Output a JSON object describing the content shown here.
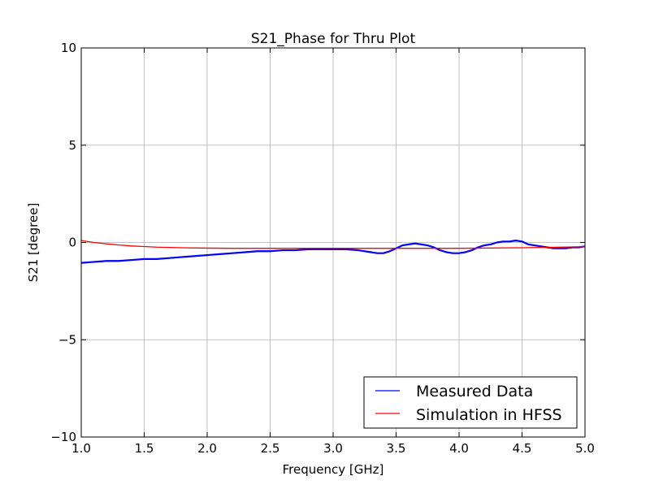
{
  "chart_data": {
    "type": "line",
    "title": "S21_Phase for Thru Plot",
    "xlabel": "Frequency [GHz]",
    "ylabel": "S21 [degree]",
    "xlim": [
      1.0,
      5.0
    ],
    "ylim": [
      -10,
      10
    ],
    "x_ticks": [
      1.0,
      1.5,
      2.0,
      2.5,
      3.0,
      3.5,
      4.0,
      4.5,
      5.0
    ],
    "x_tick_labels": [
      "1.0",
      "1.5",
      "2.0",
      "2.5",
      "3.0",
      "3.5",
      "4.0",
      "4.5",
      "5.0"
    ],
    "y_ticks": [
      10,
      5,
      0,
      -5,
      -10
    ],
    "y_tick_labels": [
      "10",
      "5",
      "0",
      "−5",
      "−10"
    ],
    "grid": true,
    "legend_position": "lower right",
    "series": [
      {
        "name": "Measured Data",
        "color": "#0000ff",
        "x": [
          1.0,
          1.1,
          1.2,
          1.3,
          1.4,
          1.5,
          1.6,
          1.7,
          1.8,
          1.9,
          2.0,
          2.1,
          2.2,
          2.3,
          2.4,
          2.5,
          2.6,
          2.7,
          2.8,
          2.9,
          3.0,
          3.1,
          3.2,
          3.3,
          3.35,
          3.4,
          3.45,
          3.5,
          3.55,
          3.6,
          3.65,
          3.7,
          3.75,
          3.8,
          3.85,
          3.9,
          3.95,
          4.0,
          4.05,
          4.1,
          4.15,
          4.2,
          4.25,
          4.3,
          4.35,
          4.4,
          4.45,
          4.5,
          4.55,
          4.6,
          4.65,
          4.7,
          4.75,
          4.8,
          4.85,
          4.9,
          4.95,
          5.0
        ],
        "y": [
          -1.05,
          -1.0,
          -0.95,
          -0.95,
          -0.9,
          -0.85,
          -0.85,
          -0.8,
          -0.75,
          -0.7,
          -0.65,
          -0.6,
          -0.55,
          -0.5,
          -0.45,
          -0.45,
          -0.4,
          -0.4,
          -0.35,
          -0.35,
          -0.35,
          -0.35,
          -0.4,
          -0.5,
          -0.55,
          -0.55,
          -0.45,
          -0.3,
          -0.15,
          -0.1,
          -0.05,
          -0.1,
          -0.15,
          -0.25,
          -0.4,
          -0.5,
          -0.55,
          -0.55,
          -0.5,
          -0.4,
          -0.25,
          -0.15,
          -0.1,
          0.0,
          0.05,
          0.05,
          0.1,
          0.05,
          -0.1,
          -0.15,
          -0.2,
          -0.25,
          -0.3,
          -0.3,
          -0.3,
          -0.25,
          -0.25,
          -0.2
        ]
      },
      {
        "name": "Simulation in HFSS",
        "color": "#ff0000",
        "x": [
          1.0,
          1.1,
          1.2,
          1.3,
          1.4,
          1.5,
          1.6,
          1.8,
          2.0,
          2.2,
          2.5,
          3.0,
          3.5,
          4.0,
          4.5,
          5.0
        ],
        "y": [
          0.1,
          0.0,
          -0.07,
          -0.13,
          -0.18,
          -0.21,
          -0.24,
          -0.27,
          -0.29,
          -0.3,
          -0.3,
          -0.3,
          -0.3,
          -0.3,
          -0.27,
          -0.22
        ]
      }
    ]
  }
}
